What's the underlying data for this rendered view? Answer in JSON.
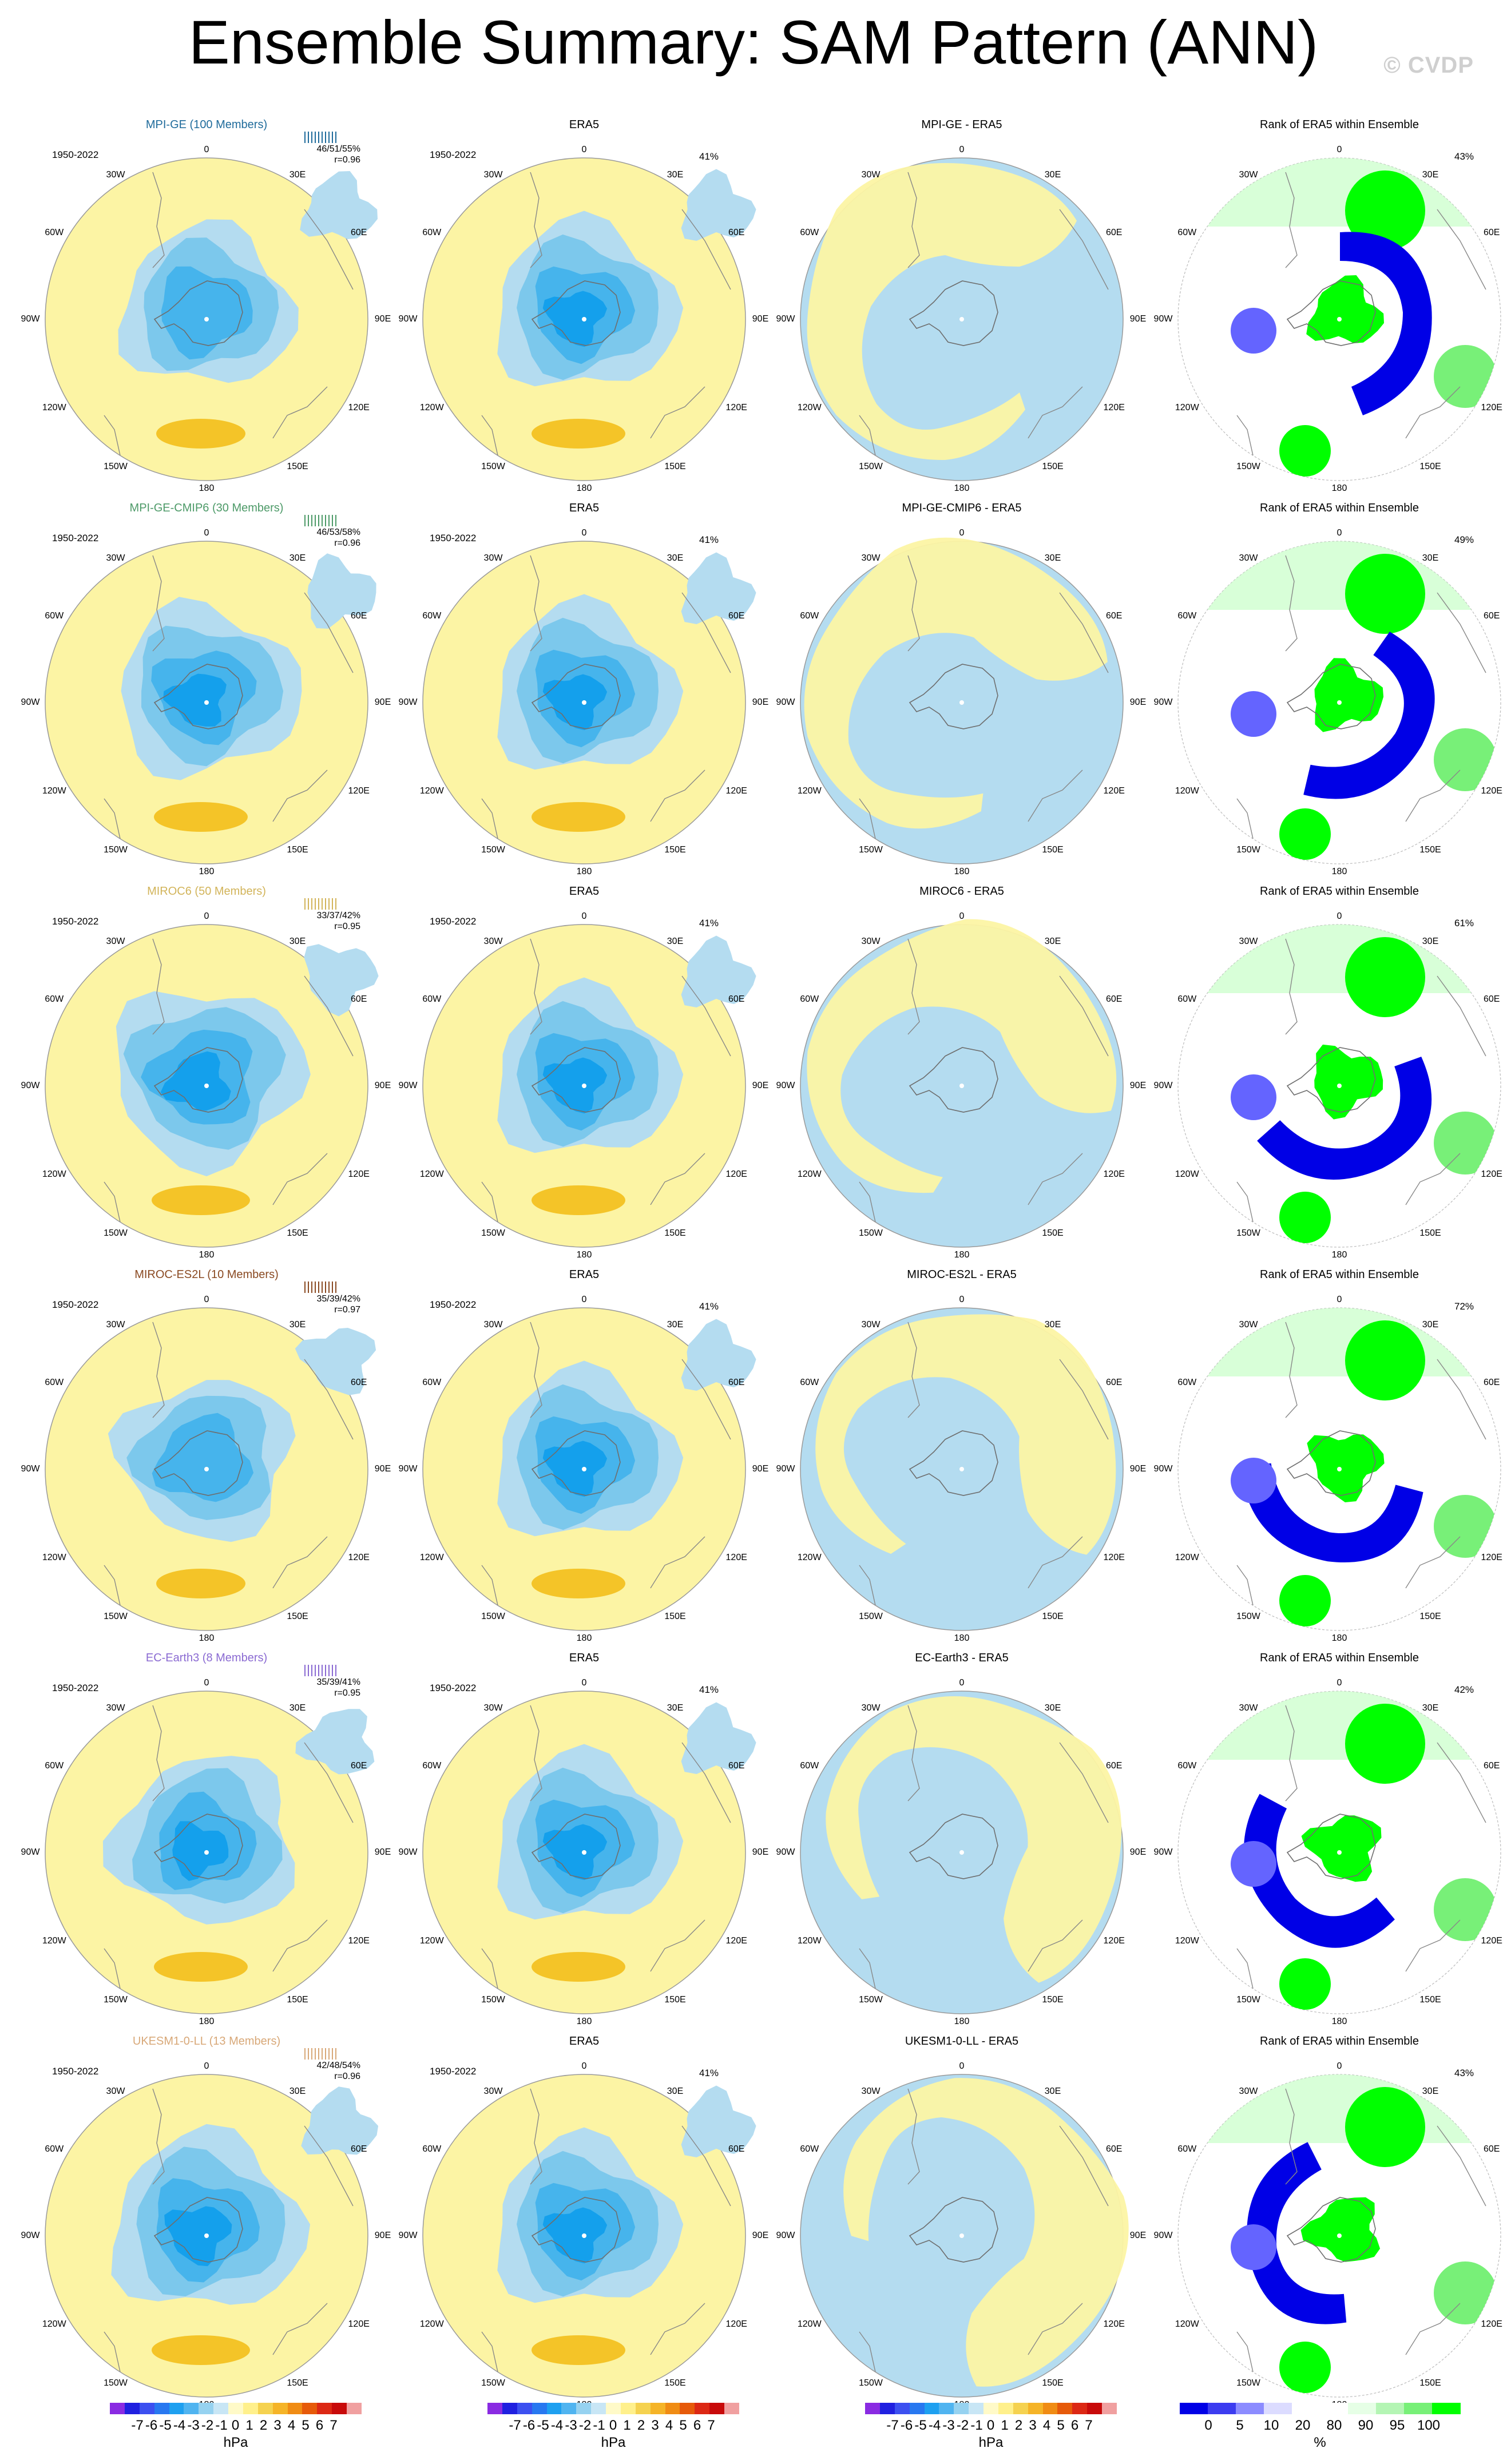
{
  "title": "Ensemble Summary: SAM Pattern (ANN)",
  "credit": "© CVDP",
  "period": "1950-2022",
  "obs_label": "ERA5",
  "obs_pct": "41%",
  "rank_title": "Rank of ERA5 within Ensemble",
  "lon_labels": {
    "top": "0",
    "tr": "30E",
    "r1": "60E",
    "right": "90E",
    "r2": "120E",
    "br": "150E",
    "bottom": "180",
    "bl": "150W",
    "l2": "120W",
    "left": "90W",
    "l1": "60W",
    "tl": "30W"
  },
  "colors": {
    "neg1": "#b4dcf0",
    "neg2": "#7cc8ec",
    "neg3": "#46b4ec",
    "neg4": "#14a0ec",
    "pos1": "#fcf4a4",
    "pos2": "#f4c428",
    "ocean_line": "#999999",
    "rank_dark": "#0000e6",
    "rank_med": "#6464ff",
    "rank_light": "#dcdcff",
    "rank_lgreen": "#c8ffc8",
    "rank_mgreen": "#78f078",
    "rank_green": "#00ff00"
  },
  "rows": [
    {
      "model": "MPI-GE (100 Members)",
      "color": "#1f6b9b",
      "stats": "46/51/55%",
      "r": "r=0.96",
      "diff_title": "MPI-GE - ERA5",
      "rank_pct": "43%"
    },
    {
      "model": "MPI-GE-CMIP6 (30 Members)",
      "color": "#4d9a68",
      "stats": "46/53/58%",
      "r": "r=0.96",
      "diff_title": "MPI-GE-CMIP6 - ERA5",
      "rank_pct": "49%"
    },
    {
      "model": "MIROC6 (50 Members)",
      "color": "#d2b45a",
      "stats": "33/37/42%",
      "r": "r=0.95",
      "diff_title": "MIROC6 - ERA5",
      "rank_pct": "61%"
    },
    {
      "model": "MIROC-ES2L (10 Members)",
      "color": "#8a4a22",
      "stats": "35/39/42%",
      "r": "r=0.97",
      "diff_title": "MIROC-ES2L - ERA5",
      "rank_pct": "72%"
    },
    {
      "model": "EC-Earth3 (8 Members)",
      "color": "#8a6ad2",
      "stats": "35/39/41%",
      "r": "r=0.95",
      "diff_title": "EC-Earth3 - ERA5",
      "rank_pct": "42%"
    },
    {
      "model": "UKESM1-0-LL (13 Members)",
      "color": "#d8a878",
      "stats": "42/48/54%",
      "r": "r=0.96",
      "diff_title": "UKESM1-0-LL - ERA5",
      "rank_pct": "43%"
    }
  ],
  "colorbar_hpa": {
    "colors": [
      "#8a2be2",
      "#2020e0",
      "#3c50f0",
      "#2878f0",
      "#1ea0f0",
      "#50b4f0",
      "#96d2f0",
      "#c8e6f5",
      "#fffac8",
      "#fff08c",
      "#f5d250",
      "#f5b428",
      "#f08c14",
      "#e65a0a",
      "#dc2814",
      "#c80a0a",
      "#f0a0a0"
    ],
    "ticks": [
      "-7",
      "-6",
      "-5",
      "-4",
      "-3",
      "-2",
      "-1",
      "0",
      "1",
      "2",
      "3",
      "4",
      "5",
      "6",
      "7"
    ],
    "unit": "hPa"
  },
  "colorbar_rank": {
    "colors": [
      "#0000e6",
      "#3c3cf0",
      "#8c8cff",
      "#dcdcff",
      "#ffffff",
      "#ffffff",
      "#e6ffe6",
      "#b4f5b4",
      "#78f078",
      "#00ff00"
    ],
    "ticks": [
      "0",
      "5",
      "10",
      "20",
      "80",
      "90",
      "95",
      "100"
    ],
    "unit": "%"
  }
}
